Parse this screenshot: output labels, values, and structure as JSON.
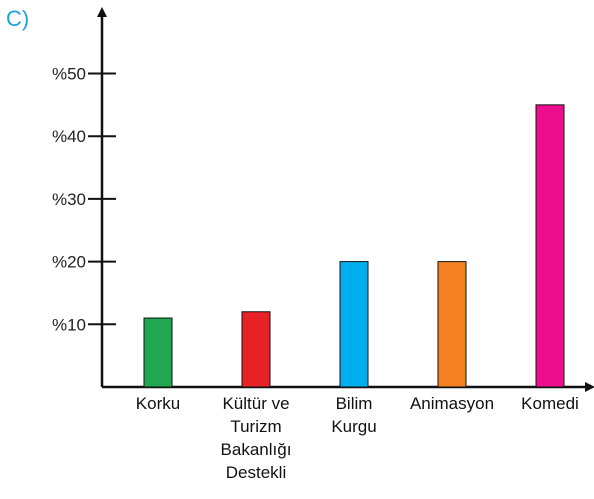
{
  "option_label": "C)",
  "colors": {
    "option_label": "#1aa3d9",
    "axis": "#111111"
  },
  "chart_data": {
    "type": "bar",
    "title": "",
    "xlabel": "",
    "ylabel": "",
    "ylim": [
      0,
      55
    ],
    "yticks": [
      10,
      20,
      30,
      40,
      50
    ],
    "ytick_labels": [
      "%10",
      "%20",
      "%30",
      "%40",
      "%50"
    ],
    "categories": [
      [
        "Korku"
      ],
      [
        "Kültür ve",
        "Turizm",
        "Bakanlığı",
        "Destekli"
      ],
      [
        "Bilim",
        "Kurgu"
      ],
      [
        "Animasyon"
      ],
      [
        "Komedi"
      ]
    ],
    "values": [
      11,
      12,
      20,
      20,
      45
    ],
    "bar_colors": [
      "#1fa84f",
      "#e82127",
      "#00aeef",
      "#f58220",
      "#ec0e8c"
    ]
  }
}
